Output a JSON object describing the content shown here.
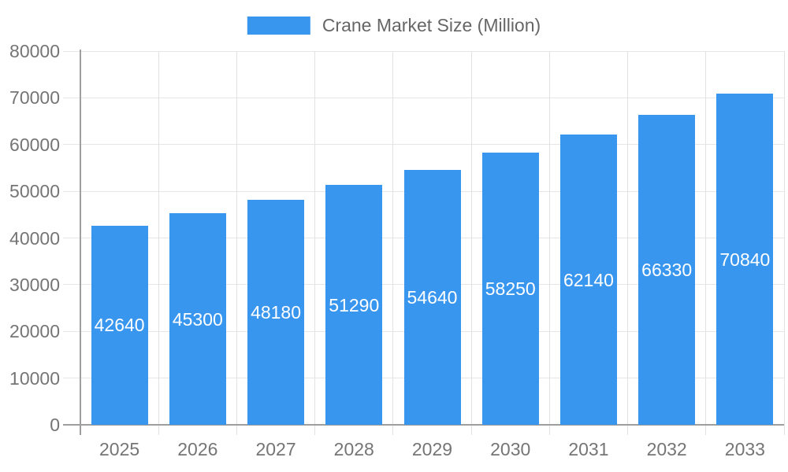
{
  "legend": {
    "label": "Crane Market Size (Million)"
  },
  "chart_data": {
    "type": "bar",
    "title": "Crane Market Size (Million)",
    "categories": [
      "2025",
      "2026",
      "2027",
      "2028",
      "2029",
      "2030",
      "2031",
      "2032",
      "2033"
    ],
    "values": [
      42640,
      45300,
      48180,
      51290,
      54640,
      58250,
      62140,
      66330,
      70840
    ],
    "series_name": "Crane Market Size (Million)",
    "xlabel": "",
    "ylabel": "",
    "ylim": [
      0,
      80000
    ],
    "ytick_step": 10000,
    "ytick_labels": [
      "0",
      "10000",
      "20000",
      "30000",
      "40000",
      "50000",
      "60000",
      "70000",
      "80000"
    ],
    "grid": true,
    "legend_position": "top",
    "value_labels": "inside-center-white"
  },
  "colors": {
    "bar": "#3996ef",
    "axis_line": "#9e9e9e",
    "gridline": "#e6e6e6",
    "tick_label": "#757575",
    "legend_text": "#666666",
    "value_label": "#ffffff",
    "background": "#ffffff"
  }
}
